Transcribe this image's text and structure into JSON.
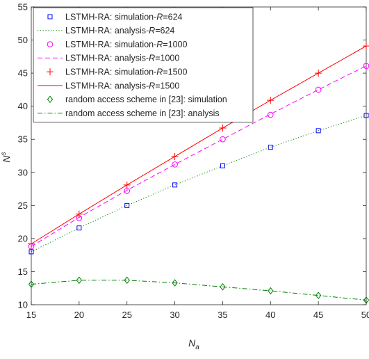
{
  "chart_data": {
    "type": "line",
    "xlabel": "N",
    "xlabel_sub": "a",
    "ylabel": "N",
    "ylabel_sup": "s",
    "xlim": [
      15,
      50
    ],
    "ylim": [
      10,
      55
    ],
    "xticks": [
      15,
      20,
      25,
      30,
      35,
      40,
      45,
      50
    ],
    "yticks": [
      10,
      15,
      20,
      25,
      30,
      35,
      40,
      45,
      50,
      55
    ],
    "grid": false,
    "legend_position": "top-left",
    "series": [
      {
        "name": "LSTMH-RA: simulation-R=624",
        "legend_prefix": "LSTMH-RA: simulation-",
        "legend_var": "R",
        "legend_suffix": "=624",
        "color": "#0000ff",
        "marker": "square",
        "line": "none",
        "x": [
          15,
          20,
          25,
          30,
          35,
          40,
          45,
          50
        ],
        "y": [
          18.0,
          21.6,
          25.0,
          28.1,
          31.0,
          33.8,
          36.3,
          38.6
        ]
      },
      {
        "name": "LSTMH-RA: analysis-R=624",
        "legend_prefix": "LSTMH-RA: analysis-",
        "legend_var": "R",
        "legend_suffix": "=624",
        "color": "#008000",
        "marker": "none",
        "line": "dotted",
        "x": [
          15,
          20,
          25,
          30,
          35,
          40,
          45,
          50
        ],
        "y": [
          18.0,
          21.6,
          25.0,
          28.1,
          31.0,
          33.8,
          36.3,
          38.6
        ]
      },
      {
        "name": "LSTMH-RA: simulation-R=1000",
        "legend_prefix": "LSTMH-RA: simulation-",
        "legend_var": "R",
        "legend_suffix": "=1000",
        "color": "#ff00ff",
        "marker": "circle",
        "line": "none",
        "x": [
          15,
          20,
          25,
          30,
          35,
          40,
          45,
          50
        ],
        "y": [
          18.8,
          23.1,
          27.2,
          31.2,
          35.0,
          38.7,
          42.5,
          46.1
        ]
      },
      {
        "name": "LSTMH-RA: analysis-R=1000",
        "legend_prefix": "LSTMH-RA: analysis-",
        "legend_var": "R",
        "legend_suffix": "=1000",
        "color": "#ff00ff",
        "marker": "none",
        "line": "dashed",
        "x": [
          15,
          20,
          25,
          30,
          35,
          40,
          45,
          50
        ],
        "y": [
          18.8,
          23.2,
          27.3,
          31.2,
          35.0,
          38.8,
          42.5,
          46.1
        ]
      },
      {
        "name": "LSTMH-RA: simulation-R=1500",
        "legend_prefix": "LSTMH-RA: simulation-",
        "legend_var": "R",
        "legend_suffix": "=1500",
        "color": "#ff0000",
        "marker": "plus",
        "line": "none",
        "x": [
          15,
          20,
          25,
          30,
          35,
          40,
          45,
          50
        ],
        "y": [
          19.2,
          23.7,
          28.1,
          32.4,
          36.7,
          40.9,
          45.0,
          49.1
        ]
      },
      {
        "name": "LSTMH-RA: analysis-R=1500",
        "legend_prefix": "LSTMH-RA: analysis-",
        "legend_var": "R",
        "legend_suffix": "=1500",
        "color": "#ff0000",
        "marker": "none",
        "line": "solid",
        "x": [
          15,
          20,
          25,
          30,
          35,
          40,
          45,
          50
        ],
        "y": [
          19.2,
          23.7,
          28.1,
          32.4,
          36.7,
          40.9,
          45.0,
          49.1
        ]
      },
      {
        "name": "random access scheme in [23]: simulation",
        "legend_prefix": "random access scheme in [23]: simulation",
        "legend_var": "",
        "legend_suffix": "",
        "color": "#008000",
        "marker": "diamond",
        "line": "none",
        "x": [
          15,
          20,
          25,
          30,
          35,
          40,
          45,
          50
        ],
        "y": [
          13.1,
          13.7,
          13.7,
          13.3,
          12.7,
          12.1,
          11.4,
          10.7
        ]
      },
      {
        "name": "random access scheme in [23]: analysis",
        "legend_prefix": "random access scheme in [23]: analysis",
        "legend_var": "",
        "legend_suffix": "",
        "color": "#008000",
        "marker": "none",
        "line": "dashdot",
        "x": [
          15,
          20,
          25,
          30,
          35,
          40,
          45,
          50
        ],
        "y": [
          13.1,
          13.7,
          13.7,
          13.3,
          12.7,
          12.1,
          11.4,
          10.7
        ]
      }
    ]
  }
}
